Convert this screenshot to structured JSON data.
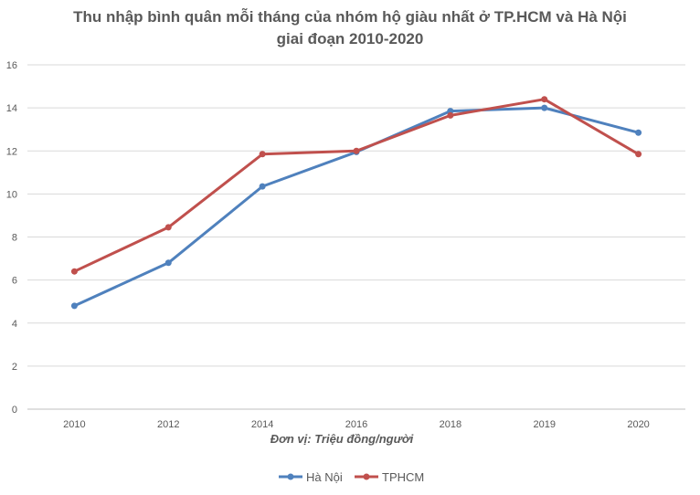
{
  "chart_data": {
    "type": "line",
    "title": "Thu nhập bình quân mỗi tháng của nhóm hộ giàu nhất ở TP.HCM và Hà Nội",
    "subtitle": "giai đoạn 2010-2020",
    "xlabel": "Đơn vị: Triệu đồng/người",
    "ylabel": "",
    "categories": [
      "2010",
      "2012",
      "2014",
      "2016",
      "2018",
      "2019",
      "2020"
    ],
    "ylim": [
      0,
      16
    ],
    "yticks": [
      0,
      2,
      4,
      6,
      8,
      10,
      12,
      14,
      16
    ],
    "grid": true,
    "legend": "bottom",
    "series": [
      {
        "name": "Hà Nội",
        "color": "#4f81bd",
        "values": [
          4.8,
          6.8,
          10.35,
          11.95,
          13.85,
          14.0,
          12.85
        ]
      },
      {
        "name": "TPHCM",
        "color": "#c0504d",
        "values": [
          6.4,
          8.45,
          11.85,
          12.0,
          13.65,
          14.4,
          11.85
        ]
      }
    ]
  }
}
